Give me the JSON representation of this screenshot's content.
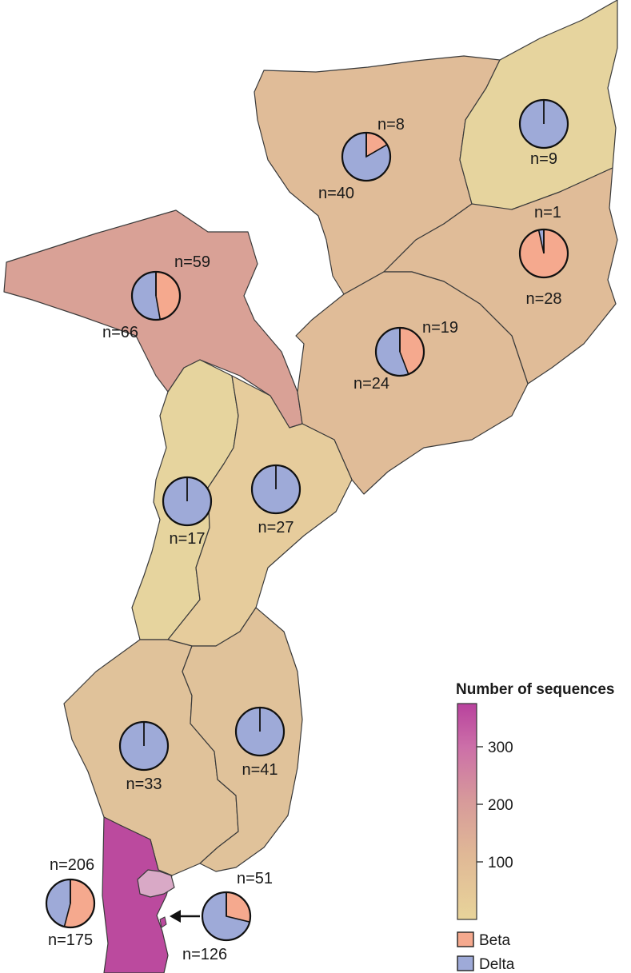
{
  "legend": {
    "title": "Number of sequences",
    "ticks": [
      {
        "value": 300,
        "label": "300"
      },
      {
        "value": 200,
        "label": "200"
      },
      {
        "value": 100,
        "label": "100"
      }
    ],
    "range": [
      0,
      375
    ],
    "gradient": [
      "#e8d49a",
      "#e0b896",
      "#d79a9a",
      "#cc6fa8",
      "#b8429d"
    ],
    "variants": [
      {
        "name": "Beta",
        "color": "#f5a98e"
      },
      {
        "name": "Delta",
        "color": "#9eaad8"
      }
    ]
  },
  "chart_data": {
    "type": "pie",
    "series_names": [
      "Beta",
      "Delta"
    ],
    "regions": [
      {
        "id": "niassa",
        "fill": "#e0bc98",
        "total": 48,
        "beta": 8,
        "delta": 40,
        "beta_label": "n=8",
        "delta_label": "n=40"
      },
      {
        "id": "cabo-delgado",
        "fill": "#e6d49e",
        "total": 9,
        "beta": 0,
        "delta": 9,
        "beta_label": "",
        "delta_label": "n=9"
      },
      {
        "id": "nampula",
        "fill": "#e0bc98",
        "total": 29,
        "beta": 28,
        "delta": 1,
        "beta_label": "n=28",
        "delta_label": "n=1"
      },
      {
        "id": "tete",
        "fill": "#d9a196",
        "total": 125,
        "beta": 59,
        "delta": 66,
        "beta_label": "n=59",
        "delta_label": "n=66"
      },
      {
        "id": "zambezia",
        "fill": "#e0bc98",
        "total": 43,
        "beta": 19,
        "delta": 24,
        "beta_label": "n=19",
        "delta_label": "n=24"
      },
      {
        "id": "manica",
        "fill": "#e6d49e",
        "total": 17,
        "beta": 0,
        "delta": 17,
        "beta_label": "",
        "delta_label": "n=17"
      },
      {
        "id": "sofala",
        "fill": "#e6cc9c",
        "total": 27,
        "beta": 0,
        "delta": 27,
        "beta_label": "",
        "delta_label": "n=27"
      },
      {
        "id": "gaza",
        "fill": "#e0c29a",
        "total": 33,
        "beta": 0,
        "delta": 33,
        "beta_label": "",
        "delta_label": "n=33"
      },
      {
        "id": "inhambane",
        "fill": "#e0c29a",
        "total": 41,
        "beta": 0,
        "delta": 41,
        "beta_label": "",
        "delta_label": "n=41"
      },
      {
        "id": "maputo-province",
        "fill": "#bb4a9e",
        "total": 381,
        "beta": 206,
        "delta": 175,
        "beta_label": "n=206",
        "delta_label": "n=175"
      },
      {
        "id": "maputo-city",
        "fill": "#d9a9c6",
        "total": 177,
        "beta": 51,
        "delta": 126,
        "beta_label": "n=51",
        "delta_label": "n=126"
      }
    ]
  }
}
